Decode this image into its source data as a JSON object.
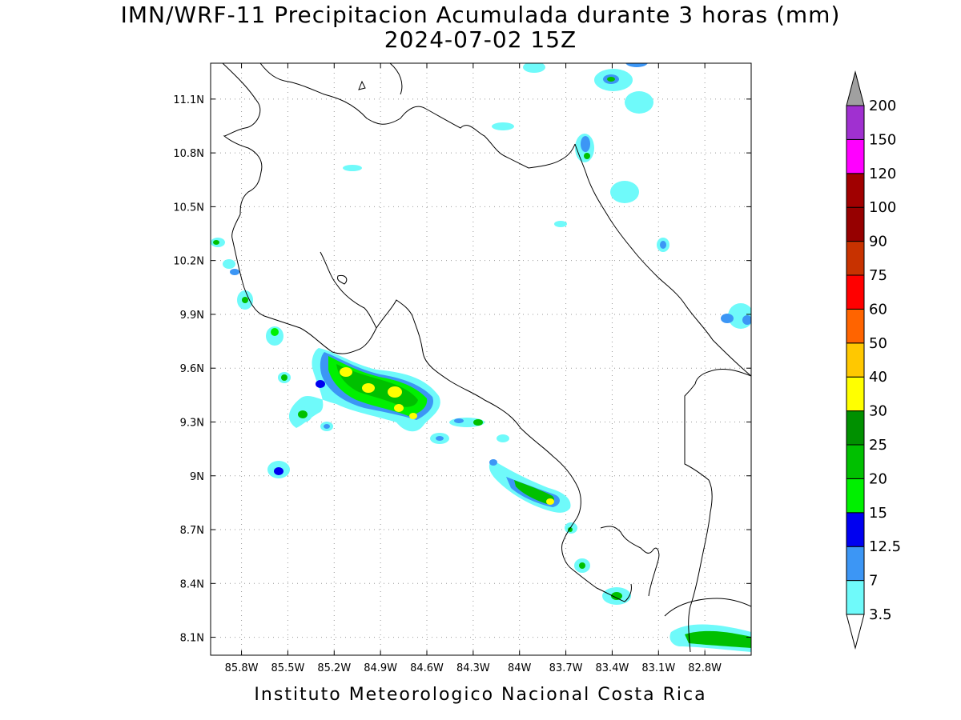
{
  "title": {
    "line1": "IMN/WRF-11 Precipitacion Acumulada durante 3 horas (mm)",
    "line2": "2024-07-02 15Z"
  },
  "footer": "Instituto Meteorologico Nacional Costa Rica",
  "axes": {
    "lat_ticks": [
      "11.1N",
      "10.8N",
      "10.5N",
      "10.2N",
      "9.9N",
      "9.6N",
      "9.3N",
      "9N",
      "8.7N",
      "8.4N",
      "8.1N"
    ],
    "lon_ticks": [
      "85.8W",
      "85.5W",
      "85.2W",
      "84.9W",
      "84.6W",
      "84.3W",
      "84W",
      "83.7W",
      "83.4W",
      "83.1W",
      "82.8W"
    ],
    "lat_values": [
      11.1,
      10.8,
      10.5,
      10.2,
      9.9,
      9.6,
      9.3,
      9.0,
      8.7,
      8.4,
      8.1
    ],
    "lon_values": [
      -85.8,
      -85.5,
      -85.2,
      -84.9,
      -84.6,
      -84.3,
      -84.0,
      -83.7,
      -83.4,
      -83.1,
      -82.8
    ],
    "lon_range": [
      -86.0,
      -82.5
    ],
    "lat_range": [
      8.0,
      11.3
    ],
    "grid": "dotted"
  },
  "colorbar": {
    "labels": [
      "3.5",
      "7",
      "12.5",
      "15",
      "20",
      "25",
      "30",
      "40",
      "50",
      "60",
      "75",
      "90",
      "100",
      "120",
      "150",
      "200"
    ],
    "colors": [
      "#6ffafa",
      "#3c96f5",
      "#0000f0",
      "#00f000",
      "#00c000",
      "#009000",
      "#ffff00",
      "#ffc800",
      "#ff6400",
      "#ff0000",
      "#c83200",
      "#960000",
      "#a00000",
      "#ff00ff",
      "#a030d0",
      "#f5f5f5"
    ],
    "extend_color": "#a0a0a0"
  }
}
